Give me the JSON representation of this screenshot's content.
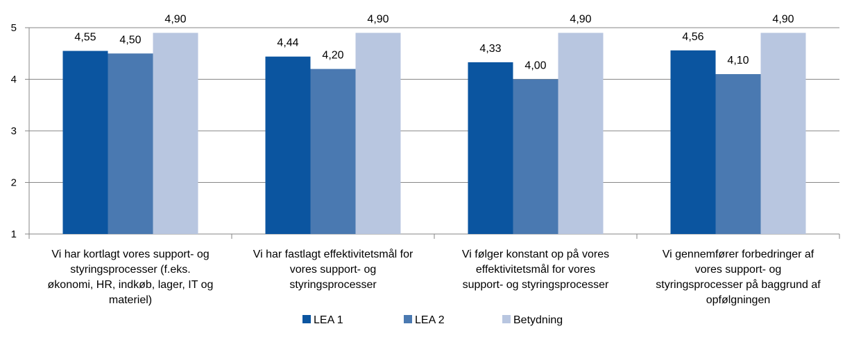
{
  "chart_data": {
    "type": "bar",
    "title": "",
    "xlabel": "",
    "ylabel": "",
    "ylim": [
      1,
      5
    ],
    "yticks": [
      "1",
      "2",
      "3",
      "4",
      "5"
    ],
    "grid": true,
    "legend_position": "bottom",
    "categories": [
      [
        "Vi har kortlagt vores support- og",
        "styringsprocesser (f.eks.",
        "økonomi, HR, indkøb, lager, IT og",
        "materiel)"
      ],
      [
        "Vi har fastlagt effektivitetsmål for",
        "vores support- og",
        "styringsprocesser"
      ],
      [
        "Vi følger konstant op på vores",
        "effektivitetsmål for vores",
        "support- og styringsprocesser"
      ],
      [
        "Vi gennemfører forbedringer af",
        "vores support- og",
        "styringsprocesser på baggrund af",
        "opfølgningen"
      ]
    ],
    "series": [
      {
        "name": "LEA 1",
        "color": "#0B55A0",
        "values": [
          4.55,
          4.44,
          4.33,
          4.56
        ],
        "labels": [
          "4,55",
          "4,44",
          "4,33",
          "4,56"
        ]
      },
      {
        "name": "LEA 2",
        "color": "#4A79B1",
        "values": [
          4.5,
          4.2,
          4.0,
          4.1
        ],
        "labels": [
          "4,50",
          "4,20",
          "4,00",
          "4,10"
        ]
      },
      {
        "name": "Betydning",
        "color": "#B8C6E0",
        "values": [
          4.9,
          4.9,
          4.9,
          4.9
        ],
        "labels": [
          "4,90",
          "4,90",
          "4,90",
          "4,90"
        ]
      }
    ]
  }
}
